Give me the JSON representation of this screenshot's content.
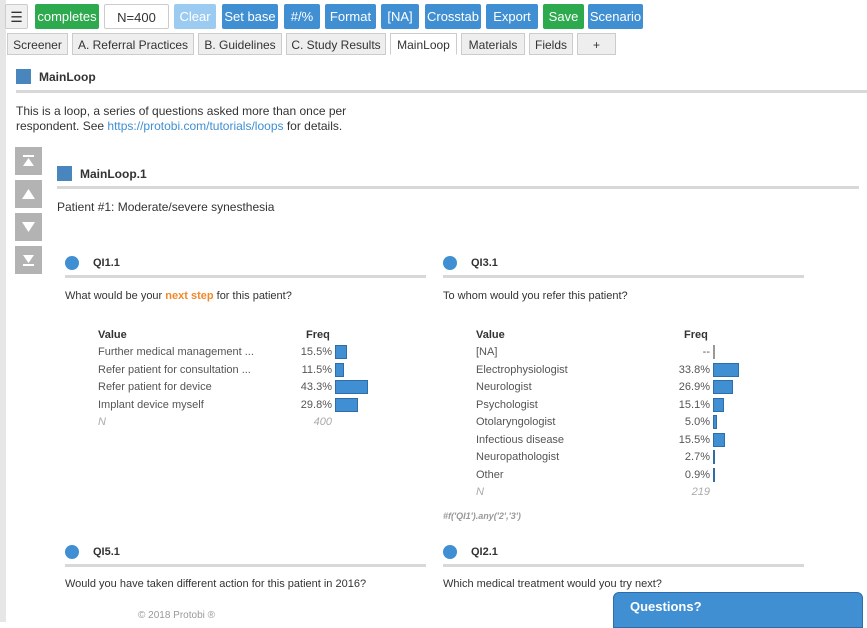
{
  "toolbar": {
    "menu_icon": "hamburger-icon",
    "completes": "completes",
    "n_value": "N=400",
    "clear": "Clear",
    "set_base": "Set base",
    "num_pct": "#/%",
    "format": "Format",
    "na": "[NA]",
    "crosstab": "Crosstab",
    "export": "Export",
    "save": "Save",
    "scenario": "Scenario"
  },
  "tabs": [
    "Screener",
    "A. Referral Practices",
    "B. Guidelines",
    "C. Study Results",
    "MainLoop",
    "Materials",
    "Fields",
    "+"
  ],
  "active_tab": "MainLoop",
  "section": {
    "title": "MainLoop",
    "desc_line1": "This is a loop, a series of questions asked more than once per",
    "desc_line2_pre": "respondent. See ",
    "desc_link": "https://protobi.com/tutorials/loops",
    "desc_line2_post": " for details."
  },
  "nav_icons": [
    "first-icon",
    "up-icon",
    "down-icon",
    "last-icon"
  ],
  "subsection": {
    "title": "MainLoop.1",
    "patient": "Patient #1:  Moderate/severe synesthesia"
  },
  "q1": {
    "id": "QI1.1",
    "text_pre": "What would be your ",
    "text_hl": "next step",
    "text_post": " for this patient?",
    "col_value": "Value",
    "col_freq": "Freq",
    "rows": [
      {
        "label": "Further medical management ...",
        "pct": "15.5%",
        "value": 15.5
      },
      {
        "label": "Refer patient for consultation ...",
        "pct": "11.5%",
        "value": 11.5
      },
      {
        "label": "Refer patient for device",
        "pct": "43.3%",
        "value": 43.3
      },
      {
        "label": "Implant device myself",
        "pct": "29.8%",
        "value": 29.8
      }
    ],
    "n_label": "N",
    "n_value": "400"
  },
  "q3": {
    "id": "QI3.1",
    "text": "To whom would you refer this patient?",
    "col_value": "Value",
    "col_freq": "Freq",
    "rows": [
      {
        "label": "[NA]",
        "pct": "--",
        "value": 0
      },
      {
        "label": "Electrophysiologist",
        "pct": "33.8%",
        "value": 33.8
      },
      {
        "label": "Neurologist",
        "pct": "26.9%",
        "value": 26.9
      },
      {
        "label": "Psychologist",
        "pct": "15.1%",
        "value": 15.1
      },
      {
        "label": "Otolaryngologist",
        "pct": "5.0%",
        "value": 5.0
      },
      {
        "label": "Infectious disease",
        "pct": "15.5%",
        "value": 15.5
      },
      {
        "label": "Neuropathologist",
        "pct": "2.7%",
        "value": 2.7
      },
      {
        "label": "Other",
        "pct": "0.9%",
        "value": 0.9
      }
    ],
    "n_label": "N",
    "n_value": "219",
    "filter": "#f('QI1').any('2','3')"
  },
  "q5": {
    "id": "QI5.1",
    "text": "Would you have taken different action for this patient in 2016?"
  },
  "q2": {
    "id": "QI2.1",
    "text": "Which medical treatment would you try next?"
  },
  "footer": "© 2018 Protobi ®",
  "questions_panel": "Questions?"
}
